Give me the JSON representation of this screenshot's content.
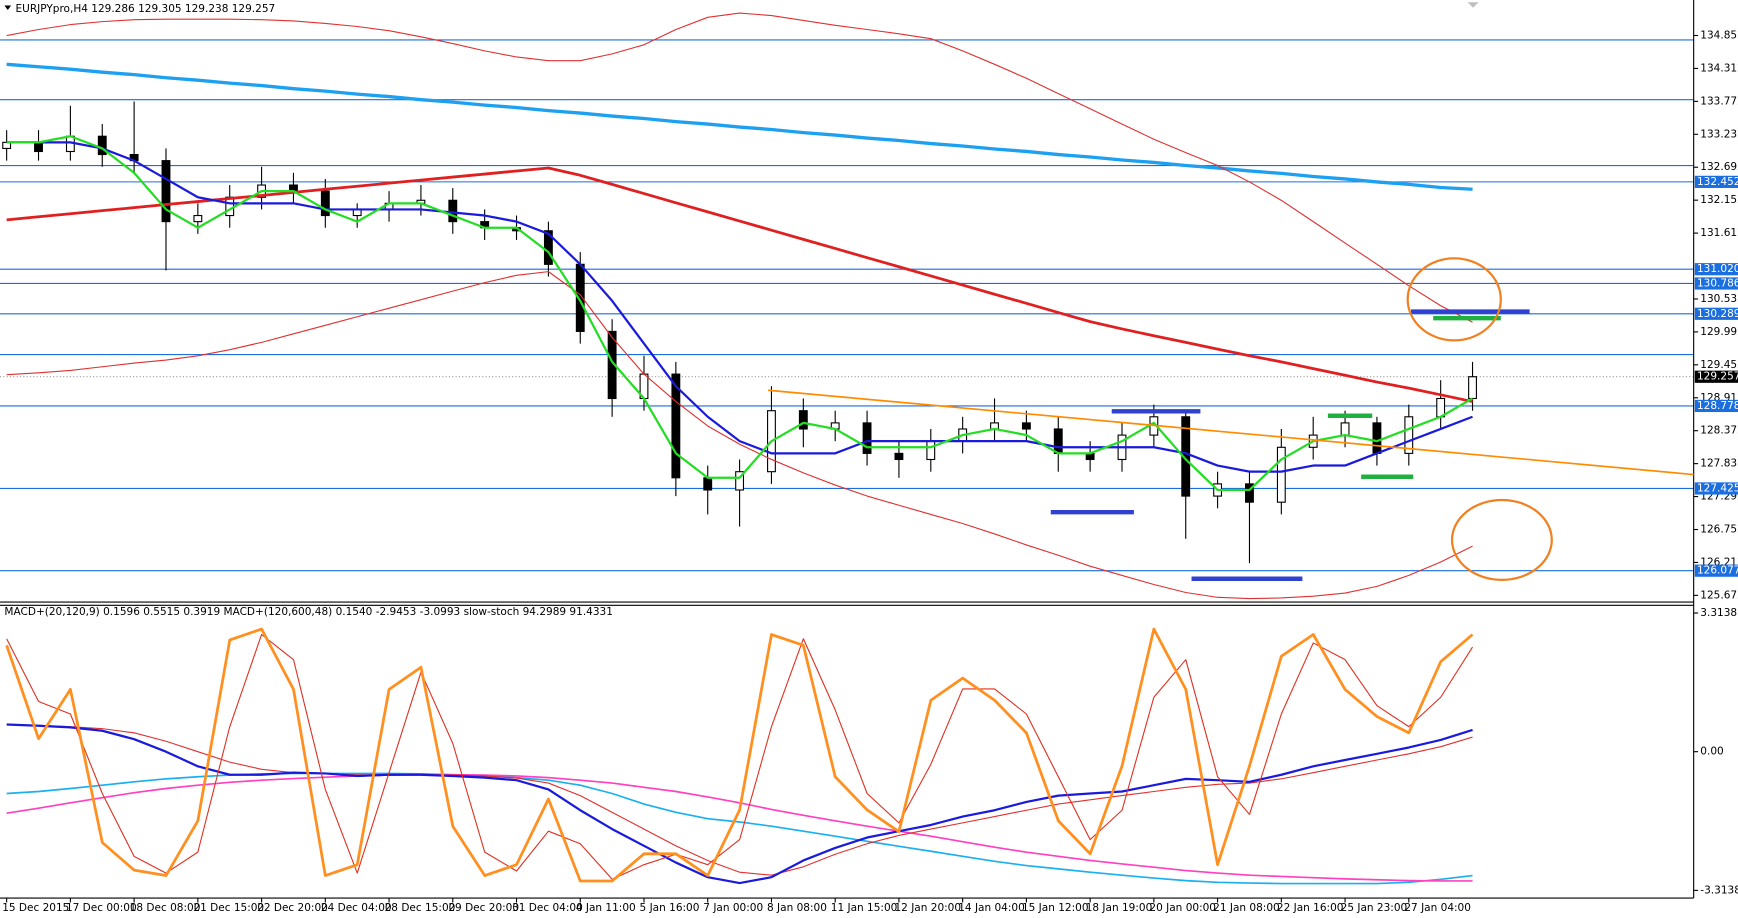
{
  "chart_data": [
    {
      "type": "candlestick",
      "title": "EURJPYpro,H4  129.286 129.305 129.238 129.257",
      "categories": [
        "15 Dec 2015",
        null,
        "17 Dec 00:00",
        null,
        "18 Dec 08:00",
        null,
        "21 Dec 15:00",
        null,
        "22 Dec 20:00",
        null,
        "24 Dec 04:00",
        null,
        "28 Dec 15:00",
        null,
        "29 Dec 20:00",
        null,
        "31 Dec 04:00",
        null,
        "4 Jan 11:00",
        null,
        "5 Jan 16:00",
        null,
        "7 Jan 00:00",
        null,
        "8 Jan 08:00",
        null,
        "11 Jan 15:00",
        null,
        "12 Jan 20:00",
        null,
        "14 Jan 04:00",
        null,
        "15 Jan 12:00",
        null,
        "18 Jan 19:00",
        null,
        "20 Jan 00:00",
        null,
        "21 Jan 08:00",
        null,
        "22 Jan 16:00",
        null,
        "25 Jan 23:00",
        null,
        "27 Jan 04:00",
        null,
        null
      ],
      "open": [
        133.0,
        133.1,
        132.95,
        133.2,
        132.9,
        132.8,
        131.8,
        131.9,
        132.2,
        132.4,
        132.3,
        131.9,
        132.0,
        132.1,
        132.15,
        131.8,
        131.7,
        131.65,
        131.1,
        130.0,
        128.9,
        129.3,
        127.6,
        127.4,
        127.7,
        128.7,
        128.4,
        128.5,
        128.0,
        127.9,
        128.2,
        128.4,
        128.5,
        128.4,
        128.0,
        127.9,
        128.3,
        128.6,
        127.3,
        127.5,
        127.2,
        128.1,
        128.3,
        128.5,
        128.0,
        128.6,
        128.9
      ],
      "high": [
        133.3,
        133.3,
        133.7,
        133.4,
        133.77,
        133.0,
        132.1,
        132.4,
        132.7,
        132.6,
        132.5,
        132.1,
        132.3,
        132.4,
        132.35,
        132.0,
        131.9,
        131.8,
        131.3,
        130.2,
        129.6,
        129.5,
        127.8,
        127.9,
        129.1,
        128.9,
        128.7,
        128.7,
        128.2,
        128.4,
        128.6,
        128.9,
        128.7,
        128.6,
        128.2,
        128.5,
        128.8,
        128.7,
        127.7,
        127.7,
        128.4,
        128.6,
        128.7,
        128.6,
        128.8,
        129.2,
        129.5
      ],
      "low": [
        132.8,
        132.8,
        132.8,
        132.7,
        132.6,
        131.0,
        131.6,
        131.7,
        132.0,
        132.1,
        131.7,
        131.7,
        131.8,
        131.9,
        131.6,
        131.5,
        131.5,
        130.9,
        129.8,
        128.6,
        128.7,
        127.3,
        127.0,
        126.8,
        127.5,
        128.1,
        128.2,
        127.8,
        127.6,
        127.7,
        128.0,
        128.2,
        128.2,
        127.7,
        127.7,
        127.7,
        128.1,
        126.6,
        127.1,
        126.2,
        127.0,
        127.9,
        128.1,
        127.8,
        127.8,
        128.4,
        128.7
      ],
      "close": [
        133.1,
        132.95,
        133.2,
        132.9,
        132.8,
        131.8,
        131.9,
        132.2,
        132.4,
        132.3,
        131.9,
        132.0,
        132.1,
        132.15,
        131.8,
        131.7,
        131.65,
        131.1,
        130.0,
        128.9,
        129.3,
        127.6,
        127.4,
        127.7,
        128.7,
        128.4,
        128.5,
        128.0,
        127.9,
        128.2,
        128.4,
        128.5,
        128.4,
        128.0,
        127.9,
        128.3,
        128.6,
        127.3,
        127.5,
        127.2,
        128.1,
        128.3,
        128.5,
        128.0,
        128.6,
        128.9,
        129.257
      ],
      "up_color": "#ffffff",
      "down_color": "#000000",
      "series": [
        {
          "color": "#1ea0f0",
          "width": 3,
          "values": [
            134.38,
            134.34,
            134.3,
            134.25,
            134.21,
            134.16,
            134.12,
            134.07,
            134.03,
            133.98,
            133.94,
            133.89,
            133.85,
            133.8,
            133.76,
            133.71,
            133.67,
            133.62,
            133.58,
            133.53,
            133.49,
            133.44,
            133.4,
            133.35,
            133.31,
            133.26,
            133.22,
            133.17,
            133.13,
            133.08,
            133.04,
            132.99,
            132.95,
            132.9,
            132.86,
            132.81,
            132.77,
            132.72,
            132.68,
            132.63,
            132.59,
            132.54,
            132.5,
            132.45,
            132.41,
            132.36,
            132.33
          ]
        },
        {
          "color": "#e02020",
          "width": 2.5,
          "values": [
            131.83,
            131.88,
            131.93,
            131.98,
            132.03,
            132.08,
            132.13,
            132.18,
            132.23,
            132.28,
            132.33,
            132.38,
            132.43,
            132.48,
            132.53,
            132.58,
            132.63,
            132.68,
            132.56,
            132.41,
            132.26,
            132.11,
            131.96,
            131.81,
            131.66,
            131.51,
            131.36,
            131.21,
            131.06,
            130.91,
            130.76,
            130.61,
            130.46,
            130.31,
            130.16,
            130.04,
            129.93,
            129.82,
            129.71,
            129.6,
            129.5,
            129.39,
            129.28,
            129.17,
            129.07,
            128.96,
            128.85
          ]
        },
        {
          "color": "#e03030",
          "width": 1,
          "values": [
            134.85,
            134.95,
            135.03,
            135.08,
            135.11,
            135.12,
            135.12,
            135.12,
            135.11,
            135.09,
            135.05,
            135.0,
            134.93,
            134.83,
            134.72,
            134.6,
            134.5,
            134.44,
            134.44,
            134.55,
            134.7,
            134.95,
            135.15,
            135.22,
            135.18,
            135.1,
            135.02,
            134.95,
            134.88,
            134.8,
            134.6,
            134.38,
            134.15,
            133.9,
            133.65,
            133.4,
            133.15,
            132.93,
            132.72,
            132.45,
            132.15,
            131.8,
            131.45,
            131.1,
            130.75,
            130.42,
            130.15
          ]
        },
        {
          "color": "#e03030",
          "width": 1,
          "values": [
            129.29,
            129.32,
            129.36,
            129.42,
            129.48,
            129.53,
            129.6,
            129.7,
            129.82,
            129.96,
            130.1,
            130.24,
            130.38,
            130.52,
            130.66,
            130.8,
            130.92,
            130.98,
            130.6,
            129.9,
            129.3,
            128.85,
            128.45,
            128.15,
            127.9,
            127.68,
            127.48,
            127.3,
            127.15,
            127.0,
            126.85,
            126.68,
            126.5,
            126.33,
            126.15,
            126.0,
            125.85,
            125.72,
            125.64,
            125.62,
            125.63,
            125.66,
            125.71,
            125.82,
            126.0,
            126.22,
            126.48
          ]
        },
        {
          "color": "#1a1adc",
          "width": 2,
          "values": [
            133.1,
            133.1,
            133.1,
            133.0,
            132.8,
            132.5,
            132.2,
            132.1,
            132.1,
            132.1,
            132.0,
            132.0,
            132.0,
            132.0,
            131.95,
            131.9,
            131.8,
            131.6,
            131.1,
            130.5,
            129.8,
            129.1,
            128.6,
            128.2,
            128.0,
            128.0,
            128.0,
            128.2,
            128.2,
            128.2,
            128.2,
            128.2,
            128.2,
            128.1,
            128.1,
            128.1,
            128.1,
            128.0,
            127.8,
            127.7,
            127.7,
            127.8,
            127.8,
            128.0,
            128.2,
            128.4,
            128.6
          ]
        },
        {
          "color": "#22dd22",
          "width": 2,
          "values": [
            133.1,
            133.1,
            133.2,
            133.0,
            132.6,
            132.0,
            131.7,
            132.0,
            132.3,
            132.3,
            132.0,
            131.8,
            132.1,
            132.1,
            131.9,
            131.7,
            131.7,
            131.3,
            130.5,
            129.5,
            128.9,
            128.0,
            127.6,
            127.6,
            128.2,
            128.5,
            128.4,
            128.1,
            128.1,
            128.1,
            128.3,
            128.4,
            128.3,
            128.0,
            128.0,
            128.2,
            128.5,
            127.9,
            127.4,
            127.4,
            127.9,
            128.2,
            128.3,
            128.2,
            128.4,
            128.6,
            128.9
          ]
        }
      ],
      "ylim": [
        125.563,
        135.434
      ],
      "yticks": [
        134.852,
        134.312,
        133.772,
        133.232,
        132.692,
        132.152,
        131.612,
        130.532,
        129.992,
        129.452,
        128.912,
        128.372,
        127.832,
        127.292,
        126.752,
        126.212,
        125.672
      ],
      "levels": [
        134.78,
        133.8,
        132.72,
        129.62
      ],
      "hlines": [
        132.452,
        {
          "value": 131.02,
          "label": "131.020"
        },
        130.786,
        130.289,
        128.778,
        127.425,
        126.077
      ],
      "hline_color": "#1a6ee0",
      "last": 129.257
    },
    {
      "type": "line",
      "title": "MACD+(20,120,9) 0.1596 0.5515 0.3919  MACD+(120,600,48) 0.1540 -2.9453 -3.0993  slow-stoch 94.2989 91.4331",
      "series": [
        {
          "color": "#1ab0f0",
          "width": 1.5,
          "values": [
            -1.0,
            -0.95,
            -0.88,
            -0.8,
            -0.72,
            -0.65,
            -0.6,
            -0.56,
            -0.53,
            -0.52,
            -0.52,
            -0.52,
            -0.52,
            -0.53,
            -0.55,
            -0.58,
            -0.62,
            -0.68,
            -0.8,
            -1.0,
            -1.25,
            -1.45,
            -1.6,
            -1.68,
            -1.78,
            -1.9,
            -2.02,
            -2.14,
            -2.26,
            -2.38,
            -2.5,
            -2.62,
            -2.72,
            -2.8,
            -2.88,
            -2.95,
            -3.02,
            -3.08,
            -3.12,
            -3.14,
            -3.15,
            -3.15,
            -3.15,
            -3.15,
            -3.12,
            -3.05,
            -2.96
          ]
        },
        {
          "color": "#ff40c0",
          "width": 1.5,
          "values": [
            -1.47,
            -1.35,
            -1.22,
            -1.1,
            -0.98,
            -0.88,
            -0.8,
            -0.73,
            -0.68,
            -0.64,
            -0.61,
            -0.58,
            -0.56,
            -0.55,
            -0.55,
            -0.56,
            -0.58,
            -0.62,
            -0.68,
            -0.75,
            -0.85,
            -0.95,
            -1.08,
            -1.22,
            -1.38,
            -1.52,
            -1.65,
            -1.78,
            -1.9,
            -2.02,
            -2.15,
            -2.28,
            -2.4,
            -2.5,
            -2.6,
            -2.68,
            -2.76,
            -2.84,
            -2.9,
            -2.95,
            -2.98,
            -3.01,
            -3.04,
            -3.06,
            -3.08,
            -3.09,
            -3.09
          ]
        },
        {
          "color": "#e03030",
          "width": 1,
          "values": [
            0.65,
            0.63,
            0.6,
            0.55,
            0.45,
            0.25,
            0.0,
            -0.25,
            -0.42,
            -0.5,
            -0.52,
            -0.55,
            -0.55,
            -0.55,
            -0.56,
            -0.58,
            -0.63,
            -0.75,
            -1.05,
            -1.45,
            -1.85,
            -2.25,
            -2.6,
            -2.88,
            -2.95,
            -2.75,
            -2.45,
            -2.2,
            -2.0,
            -1.85,
            -1.7,
            -1.55,
            -1.4,
            -1.25,
            -1.15,
            -1.05,
            -0.95,
            -0.85,
            -0.78,
            -0.75,
            -0.65,
            -0.5,
            -0.35,
            -0.2,
            -0.05,
            0.12,
            0.35
          ]
        },
        {
          "color": "#1a1adc",
          "width": 2,
          "values": [
            0.65,
            0.62,
            0.58,
            0.5,
            0.3,
            0.0,
            -0.35,
            -0.55,
            -0.55,
            -0.5,
            -0.52,
            -0.58,
            -0.55,
            -0.55,
            -0.58,
            -0.62,
            -0.68,
            -0.9,
            -1.4,
            -1.85,
            -2.25,
            -2.65,
            -3.0,
            -3.14,
            -3.0,
            -2.6,
            -2.3,
            -2.05,
            -1.9,
            -1.75,
            -1.55,
            -1.4,
            -1.2,
            -1.05,
            -1.0,
            -0.95,
            -0.8,
            -0.65,
            -0.68,
            -0.72,
            -0.55,
            -0.35,
            -0.2,
            -0.05,
            0.1,
            0.28,
            0.52
          ]
        },
        {
          "color": "#e03020",
          "width": 1,
          "values": [
            2.7,
            1.2,
            0.9,
            -1.0,
            -2.5,
            -2.9,
            -2.4,
            0.6,
            2.8,
            2.2,
            -0.9,
            -2.9,
            -0.5,
            1.9,
            0.2,
            -2.4,
            -2.85,
            -1.9,
            -2.2,
            -3.05,
            -2.7,
            -2.45,
            -2.7,
            -2.1,
            0.6,
            2.7,
            1.0,
            -1.0,
            -1.7,
            -0.3,
            1.5,
            1.5,
            0.9,
            -0.6,
            -2.1,
            -1.4,
            1.3,
            2.2,
            -0.6,
            -1.5,
            0.9,
            2.6,
            2.2,
            1.1,
            0.6,
            1.3,
            2.5
          ]
        },
        {
          "color": "#ff9020",
          "width": 2.5,
          "values": [
            2.54,
            0.31,
            1.49,
            -2.17,
            -2.83,
            -2.96,
            -1.65,
            2.67,
            2.93,
            1.49,
            -2.96,
            -2.7,
            1.49,
            2.02,
            -1.78,
            -2.96,
            -2.7,
            -1.13,
            -3.09,
            -3.09,
            -2.44,
            -2.44,
            -2.96,
            -1.39,
            2.8,
            2.54,
            -0.6,
            -1.39,
            -1.91,
            1.23,
            1.76,
            1.23,
            0.45,
            -1.65,
            -2.44,
            -0.34,
            2.93,
            1.49,
            -2.7,
            -0.34,
            2.28,
            2.8,
            1.49,
            0.84,
            0.45,
            2.15,
            2.8
          ]
        }
      ],
      "ylim": [
        -3.497,
        3.497
      ],
      "yticks": [
        3.3138,
        {
          "value": 0,
          "label": "0.00"
        },
        -3.3138
      ]
    }
  ]
}
